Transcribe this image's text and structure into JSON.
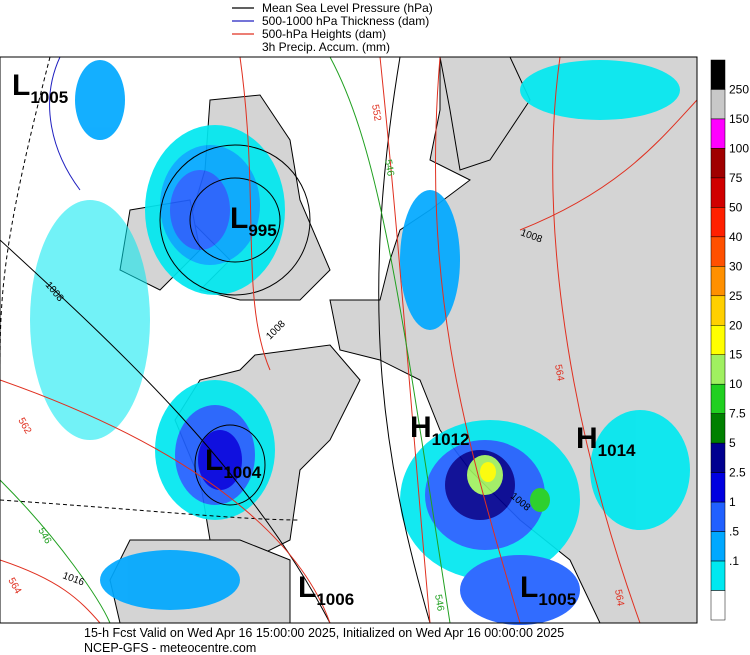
{
  "legend": {
    "items": [
      {
        "label": "Mean Sea Level Pressure (hPa)",
        "color": "#000000"
      },
      {
        "label": "500-1000 hPa Thickness (dam)",
        "color": "#2020c0"
      },
      {
        "label": "500-hPa Heights (dam)",
        "color": "#e03020"
      },
      {
        "label": "3h Precip. Accum. (mm)",
        "color": null
      }
    ]
  },
  "colorbar": {
    "top_color": "#000000",
    "levels": [
      {
        "label": "250",
        "color": "#c8c8c8"
      },
      {
        "label": "150",
        "color": "#ff00ff"
      },
      {
        "label": "100",
        "color": "#a00000"
      },
      {
        "label": "75",
        "color": "#d00000"
      },
      {
        "label": "50",
        "color": "#ff2000"
      },
      {
        "label": "40",
        "color": "#ff5000"
      },
      {
        "label": "30",
        "color": "#ff9000"
      },
      {
        "label": "25",
        "color": "#ffd000"
      },
      {
        "label": "20",
        "color": "#ffff00"
      },
      {
        "label": "15",
        "color": "#a0f060"
      },
      {
        "label": "10",
        "color": "#20d020"
      },
      {
        "label": "7.5",
        "color": "#008000"
      },
      {
        "label": "5",
        "color": "#000090"
      },
      {
        "label": "2.5",
        "color": "#0000e0"
      },
      {
        "label": "1",
        "color": "#2060ff"
      },
      {
        "label": ".5",
        "color": "#00a8ff"
      },
      {
        "label": ".1",
        "color": "#00e8f0"
      }
    ],
    "bottom_color": "#ffffff"
  },
  "centers": [
    {
      "letter": "L",
      "value": "1005"
    },
    {
      "letter": "L",
      "value": "995"
    },
    {
      "letter": "L",
      "value": "1004"
    },
    {
      "letter": "H",
      "value": "1012"
    },
    {
      "letter": "H",
      "value": "1014"
    },
    {
      "letter": "L",
      "value": "1006"
    },
    {
      "letter": "L",
      "value": "1005"
    }
  ],
  "contour_labels": [
    "1008",
    "552",
    "546",
    "1008",
    "1008",
    "562",
    "564",
    "546",
    "1016",
    "564",
    "546",
    "564",
    "1008"
  ],
  "footer": {
    "line1": "15-h Fcst Valid on Wed Apr 16 15:00:00 2025, Initialized on Wed Apr 16 00:00:00 2025",
    "line2": "NCEP-GFS  - meteocentre.com"
  }
}
